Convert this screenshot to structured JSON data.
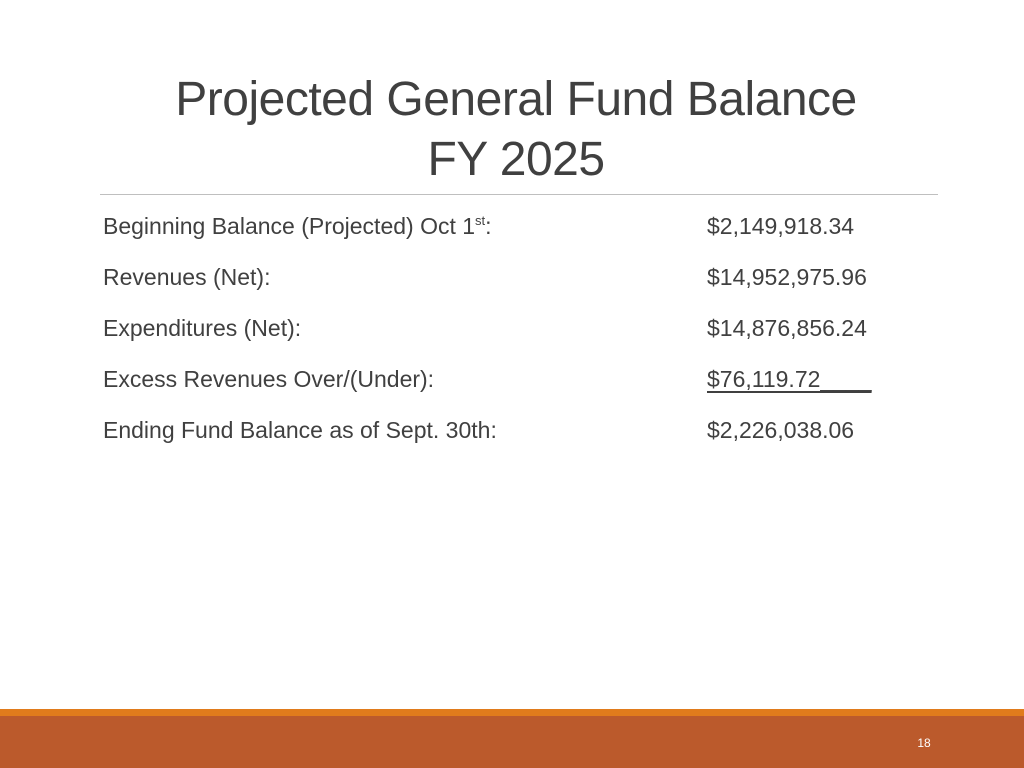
{
  "slide": {
    "title_line1": "Projected General Fund Balance",
    "title_line2": "FY 2025",
    "page_number": "18"
  },
  "rows": [
    {
      "label": "Beginning Balance (Projected) Oct 1",
      "label_sup": "st",
      "label_suffix": ":",
      "value": "$2,149,918.34"
    },
    {
      "label": "Revenues (Net):",
      "value": "$14,952,975.96"
    },
    {
      "label": "Expenditures (Net):",
      "value": "$14,876,856.24"
    },
    {
      "label": "Excess Revenues Over/(Under):",
      "value": "$76,119.72____"
    },
    {
      "label": "Ending Fund Balance as of Sept. 30th:",
      "value": "$2,226,038.06"
    }
  ],
  "colors": {
    "accent_stripe": "#e07b1c",
    "footer_band": "#bb5a2c",
    "text": "#404040"
  }
}
